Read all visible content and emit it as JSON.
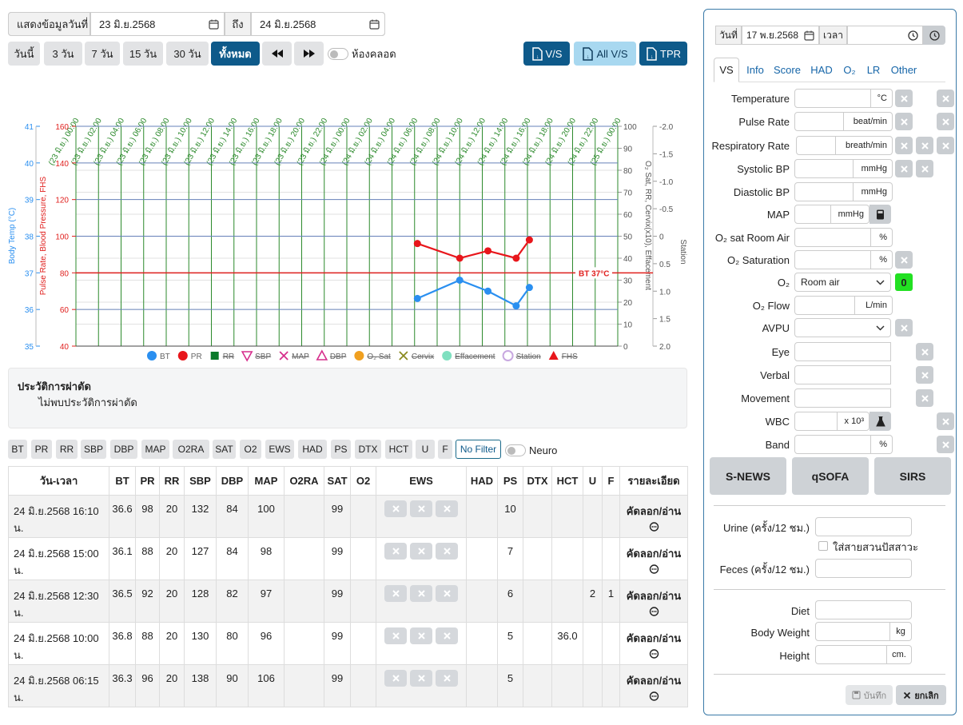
{
  "filter": {
    "label": "แสดงข้อมูลวันที่",
    "from": "23 มิ.ย.2568",
    "to_label": "ถึง",
    "to": "24 มิ.ย.2568"
  },
  "range_buttons": [
    "วันนี้",
    "3 วัน",
    "7 วัน",
    "15 วัน",
    "30 วัน",
    "ทั้งหมด"
  ],
  "active_range": 5,
  "delivery_room_toggle": {
    "label": "ห้องคลอด",
    "on": false
  },
  "export_buttons": [
    "V/S",
    "All V/S",
    "TPR"
  ],
  "chart_data": {
    "type": "line",
    "xlim": [
      0,
      48
    ],
    "xticks": [
      {
        "value": 0,
        "label": "(23 มิ.ย.) 00:00"
      },
      {
        "value": 2,
        "label": "(23 มิ.ย.) 02:00"
      },
      {
        "value": 4,
        "label": "(23 มิ.ย.) 04:00"
      },
      {
        "value": 6,
        "label": "(23 มิ.ย.) 06:00"
      },
      {
        "value": 8,
        "label": "(23 มิ.ย.) 08:00"
      },
      {
        "value": 10,
        "label": "(23 มิ.ย.) 10:00"
      },
      {
        "value": 12,
        "label": "(23 มิ.ย.) 12:00"
      },
      {
        "value": 14,
        "label": "(23 มิ.ย.) 14:00"
      },
      {
        "value": 16,
        "label": "(23 มิ.ย.) 16:00"
      },
      {
        "value": 18,
        "label": "(23 มิ.ย.) 18:00"
      },
      {
        "value": 20,
        "label": "(23 มิ.ย.) 20:00"
      },
      {
        "value": 22,
        "label": "(23 มิ.ย.) 22:00"
      },
      {
        "value": 24,
        "label": "(24 มิ.ย.) 00:00"
      },
      {
        "value": 26,
        "label": "(24 มิ.ย.) 02:00"
      },
      {
        "value": 28,
        "label": "(24 มิ.ย.) 04:00"
      },
      {
        "value": 30,
        "label": "(24 มิ.ย.) 06:00"
      },
      {
        "value": 32,
        "label": "(24 มิ.ย.) 08:00"
      },
      {
        "value": 34,
        "label": "(24 มิ.ย.) 10:00"
      },
      {
        "value": 36,
        "label": "(24 มิ.ย.) 12:00"
      },
      {
        "value": 38,
        "label": "(24 มิ.ย.) 14:00"
      },
      {
        "value": 40,
        "label": "(24 มิ.ย.) 16:00"
      },
      {
        "value": 42,
        "label": "(24 มิ.ย.) 18:00"
      },
      {
        "value": 44,
        "label": "(24 มิ.ย.) 20:00"
      },
      {
        "value": 46,
        "label": "(24 มิ.ย.) 22:00"
      },
      {
        "value": 48,
        "label": "(25 มิ.ย.) 00:00"
      }
    ],
    "axes": [
      {
        "name": "Body Temp (°C)",
        "lim": [
          35,
          41
        ],
        "ticks": [
          35,
          36,
          37,
          38,
          39,
          40,
          41
        ],
        "color": "#2a8ff0"
      },
      {
        "name": "Pulse Rate, Blood Pressure, FHS",
        "lim": [
          40,
          160
        ],
        "ticks": [
          40,
          60,
          80,
          100,
          120,
          140,
          160
        ],
        "color": "#e0201e"
      },
      {
        "name": "O₂ Sat, RR, Cervix(x10), Effacement",
        "lim": [
          0,
          100
        ],
        "ticks": [
          0,
          10,
          20,
          30,
          40,
          50,
          60,
          70,
          80,
          90,
          100
        ],
        "color": "#555555"
      },
      {
        "name": "Station",
        "lim": [
          2,
          -2
        ],
        "ticks": [
          {
            "value": -2,
            "label": "-2.0"
          },
          -1.5,
          {
            "value": -1,
            "label": "-1.0"
          },
          -0.5,
          0,
          0.5,
          {
            "value": 1,
            "label": "1.0"
          },
          1.5,
          {
            "value": 2,
            "label": "2.0"
          }
        ],
        "color": "#555555"
      }
    ],
    "series": [
      {
        "name": "BT",
        "color": "#2a8ff0",
        "axis": 0,
        "x": [
          30.25,
          34,
          36.5,
          39,
          40.17
        ],
        "values": [
          36.3,
          36.8,
          36.5,
          36.1,
          36.6
        ]
      },
      {
        "name": "PR",
        "color": "#e8161b",
        "axis": 1,
        "x": [
          30.25,
          34,
          36.5,
          39,
          40.17
        ],
        "values": [
          96,
          88,
          92,
          88,
          98
        ]
      }
    ],
    "reference_line": {
      "label": "BT 37°C",
      "value": 37,
      "axis": 0,
      "color": "#e0201e"
    },
    "legend": [
      {
        "name": "BT",
        "color": "#2a8ff0",
        "marker": "circle",
        "active": true
      },
      {
        "name": "PR",
        "color": "#e8161b",
        "marker": "circle",
        "active": true
      },
      {
        "name": "RR",
        "color": "#0a7a2a",
        "marker": "square",
        "active": false
      },
      {
        "name": "SBP",
        "color": "#d62e8c",
        "marker": "triangle-down",
        "active": false
      },
      {
        "name": "MAP",
        "color": "#d62e8c",
        "marker": "cross",
        "active": false
      },
      {
        "name": "DBP",
        "color": "#d62e8c",
        "marker": "triangle-up",
        "active": false
      },
      {
        "name": "O₂ Sat",
        "color": "#f0a020",
        "marker": "circle",
        "active": false
      },
      {
        "name": "Cervix",
        "color": "#8a8a20",
        "marker": "cross",
        "active": false
      },
      {
        "name": "Effacement",
        "color": "#7fe0c0",
        "marker": "circle",
        "active": false
      },
      {
        "name": "Station",
        "color": "#c8a8e0",
        "marker": "ring",
        "active": false
      },
      {
        "name": "FHS",
        "color": "#e8161b",
        "marker": "triangle-up-filled",
        "active": false
      }
    ]
  },
  "surgery_history": {
    "title": "ประวัติการผ่าตัด",
    "text": "ไม่พบประวัติการผ่าตัด"
  },
  "filter_chips": [
    "BT",
    "PR",
    "RR",
    "SBP",
    "DBP",
    "MAP",
    "O2RA",
    "SAT",
    "O2",
    "EWS",
    "HAD",
    "PS",
    "DTX",
    "HCT",
    "U",
    "F"
  ],
  "no_filter": "No Filter",
  "neuro_toggle": {
    "label": "Neuro",
    "on": false
  },
  "table": {
    "columns": [
      "วัน-เวลา",
      "BT",
      "PR",
      "RR",
      "SBP",
      "DBP",
      "MAP",
      "O2RA",
      "SAT",
      "O2",
      "EWS",
      "HAD",
      "PS",
      "DTX",
      "HCT",
      "U",
      "F",
      "รายละเอียด"
    ],
    "rows": [
      [
        "24 มิ.ย.2568 16:10 น.",
        36.6,
        98,
        20,
        132,
        84,
        100,
        null,
        99,
        null,
        null,
        null,
        10,
        null,
        null,
        null,
        null
      ],
      [
        "24 มิ.ย.2568 15:00 น.",
        36.1,
        88,
        20,
        127,
        84,
        98,
        null,
        99,
        null,
        null,
        null,
        7,
        null,
        null,
        null,
        null
      ],
      [
        "24 มิ.ย.2568 12:30 น.",
        36.5,
        92,
        20,
        128,
        82,
        97,
        null,
        99,
        null,
        null,
        null,
        6,
        null,
        null,
        2,
        1
      ],
      [
        "24 มิ.ย.2568 10:00 น.",
        36.8,
        88,
        20,
        130,
        80,
        96,
        null,
        99,
        null,
        null,
        null,
        5,
        null,
        "36.0",
        null,
        null
      ],
      [
        "24 มิ.ย.2568 06:15 น.",
        36.3,
        96,
        20,
        138,
        90,
        106,
        null,
        99,
        null,
        null,
        null,
        5,
        null,
        null,
        null,
        null
      ]
    ],
    "detail_label": "คัดลอก/อ่าน"
  },
  "form": {
    "date_label": "วันที่",
    "date": "17 พ.ย.2568",
    "time_label": "เวลา",
    "tabs": [
      "VS",
      "Info",
      "Score",
      "HAD",
      "O₂",
      "LR",
      "Other"
    ],
    "active_tab": 0,
    "fields": [
      {
        "label": "Temperature",
        "unit": "°C"
      },
      {
        "label": "Pulse Rate",
        "unit": "beat/min"
      },
      {
        "label": "Respiratory Rate",
        "unit": "breath/min"
      },
      {
        "label": "Systolic BP",
        "unit": "mmHg"
      },
      {
        "label": "Diastolic BP",
        "unit": "mmHg"
      },
      {
        "label": "MAP",
        "unit": "mmHg"
      },
      {
        "label": "O₂ sat Room Air",
        "unit": "%"
      },
      {
        "label": "O₂ Saturation",
        "unit": "%"
      },
      {
        "label": "O₂",
        "value": "Room air",
        "score": 0
      },
      {
        "label": "O₂ Flow",
        "unit": "L/min"
      },
      {
        "label": "AVPU"
      },
      {
        "label": "Eye"
      },
      {
        "label": "Verbal"
      },
      {
        "label": "Movement"
      },
      {
        "label": "WBC",
        "unit": "x 10³"
      },
      {
        "label": "Band",
        "unit": "%"
      }
    ],
    "score_buttons": [
      "S-NEWS",
      "qSOFA",
      "SIRS"
    ],
    "urine_label": "Urine (ครั้ง/12 ชม.)",
    "catheter_label": "ใส่สายสวนปัสสาวะ",
    "feces_label": "Feces (ครั้ง/12 ชม.)",
    "diet_label": "Diet",
    "weight": {
      "label": "Body Weight",
      "unit": "kg"
    },
    "height": {
      "label": "Height",
      "unit": "cm."
    },
    "save": "บันทึก",
    "cancel": "ยกเลิก"
  }
}
